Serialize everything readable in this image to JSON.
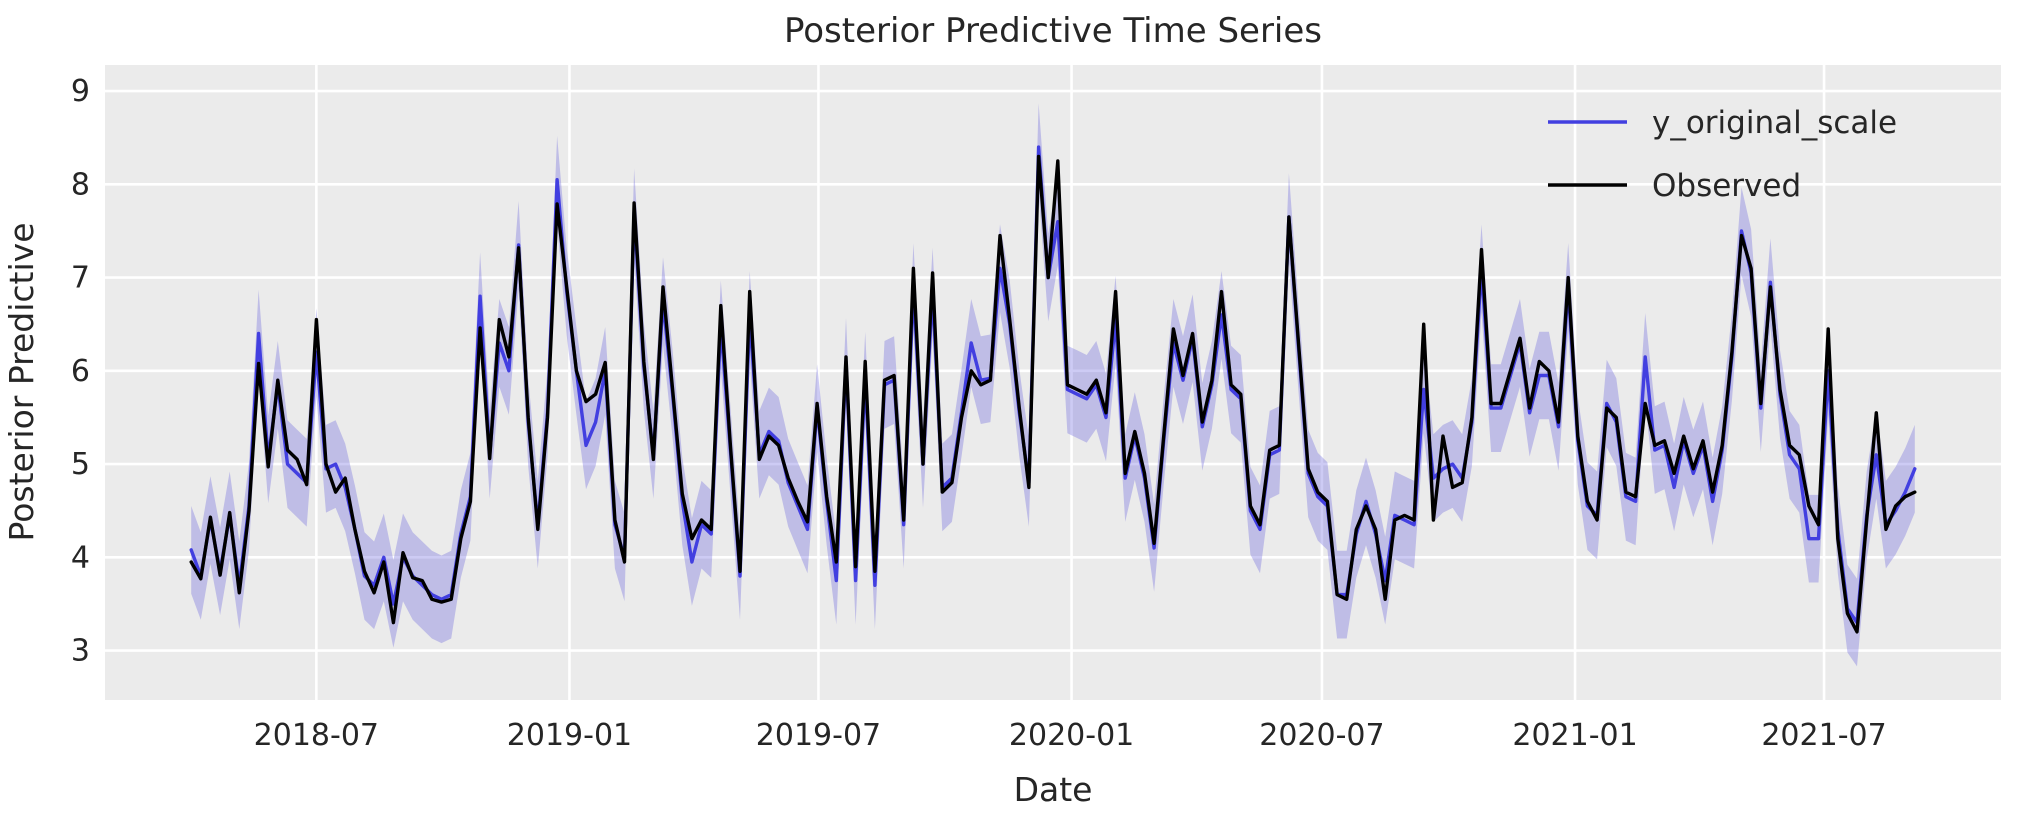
{
  "title": "Posterior Predictive Time Series",
  "axes": {
    "xlabel": "Date",
    "ylabel": "Posterior Predictive",
    "x_tick_labels": [
      "2018-07",
      "2019-01",
      "2019-07",
      "2020-01",
      "2020-07",
      "2021-01",
      "2021-07"
    ],
    "y_tick_labels": [
      "3",
      "4",
      "5",
      "6",
      "7",
      "8",
      "9"
    ]
  },
  "legend": {
    "items": [
      {
        "label": "y_original_scale",
        "color": "#423fe0"
      },
      {
        "label": "Observed",
        "color": "#000000"
      }
    ],
    "position": "upper right"
  },
  "colors": {
    "plot_background": "#ebebeb",
    "grid": "#ffffff",
    "text": "#262626",
    "predicted_line": "#423fe0",
    "observed_line": "#000000",
    "hdi_band": "#5853dc"
  },
  "chart_data": {
    "type": "line",
    "title": "Posterior Predictive Time Series",
    "xlabel": "Date",
    "ylabel": "Posterior Predictive",
    "x_start_date": "2018-04-01",
    "x_step_days": 7,
    "n_points": 180,
    "ylim": [
      2.45,
      9.3
    ],
    "y_ticks": [
      3,
      4,
      5,
      6,
      7,
      8,
      9
    ],
    "x_ticks_days_from_start": [
      91,
      275,
      456,
      640,
      822,
      1006,
      1187
    ],
    "x_tick_labels": [
      "2018-07",
      "2019-01",
      "2019-07",
      "2020-01",
      "2020-07",
      "2021-01",
      "2021-07"
    ],
    "grid": true,
    "legend_position": "upper right",
    "hdi_band": {
      "around": "y_original_scale",
      "halfwidth": 0.47,
      "opacity": 0.3
    },
    "series": [
      {
        "name": "y_original_scale",
        "color": "#423fe0",
        "values": [
          4.08,
          3.8,
          4.4,
          3.85,
          4.45,
          3.7,
          4.55,
          6.4,
          5.05,
          5.85,
          5.0,
          4.9,
          4.8,
          6.2,
          4.95,
          5.0,
          4.75,
          4.3,
          3.8,
          3.7,
          4.0,
          3.5,
          4.0,
          3.8,
          3.7,
          3.6,
          3.55,
          3.6,
          4.25,
          4.65,
          6.8,
          5.1,
          6.3,
          6.0,
          7.35,
          5.45,
          4.35,
          5.55,
          8.05,
          6.85,
          6.0,
          5.2,
          5.45,
          6.0,
          4.35,
          4.0,
          7.7,
          6.05,
          5.1,
          6.75,
          5.75,
          4.6,
          3.95,
          4.35,
          4.25,
          6.5,
          5.15,
          3.8,
          6.6,
          5.1,
          5.35,
          5.25,
          4.8,
          4.55,
          4.3,
          5.6,
          4.6,
          3.75,
          6.1,
          3.75,
          5.95,
          3.7,
          5.85,
          5.9,
          4.35,
          6.9,
          5.0,
          6.85,
          4.75,
          4.85,
          5.55,
          6.3,
          5.9,
          5.92,
          7.1,
          6.5,
          5.55,
          4.8,
          8.4,
          7.0,
          7.6,
          5.8,
          5.75,
          5.7,
          5.85,
          5.5,
          6.55,
          4.85,
          5.3,
          4.85,
          4.1,
          5.25,
          6.3,
          5.9,
          6.35,
          5.4,
          5.85,
          6.6,
          5.8,
          5.7,
          4.5,
          4.3,
          5.1,
          5.15,
          7.65,
          6.25,
          4.9,
          4.65,
          4.55,
          3.6,
          3.6,
          4.25,
          4.6,
          4.25,
          3.75,
          4.45,
          4.4,
          4.35,
          5.8,
          4.85,
          4.95,
          5.0,
          4.85,
          5.45,
          7.1,
          5.6,
          5.6,
          5.95,
          6.3,
          5.55,
          5.95,
          5.95,
          5.4,
          6.9,
          5.25,
          4.55,
          4.45,
          5.65,
          5.45,
          4.65,
          4.6,
          6.15,
          5.15,
          5.2,
          4.75,
          5.25,
          4.9,
          5.2,
          4.6,
          5.15,
          6.15,
          7.5,
          7.05,
          5.6,
          6.95,
          5.75,
          5.1,
          4.95,
          4.2,
          4.2,
          6.0,
          4.3,
          3.45,
          3.3,
          4.45,
          5.1,
          4.35,
          4.5,
          4.7,
          4.95
        ]
      },
      {
        "name": "Observed",
        "color": "#000000",
        "values": [
          3.95,
          3.77,
          4.43,
          3.81,
          4.48,
          3.62,
          4.5,
          6.08,
          4.97,
          5.9,
          5.15,
          5.05,
          4.78,
          6.55,
          5.0,
          4.7,
          4.85,
          4.3,
          3.85,
          3.62,
          3.95,
          3.3,
          4.05,
          3.78,
          3.75,
          3.55,
          3.52,
          3.55,
          4.2,
          4.6,
          6.46,
          5.06,
          6.55,
          6.15,
          7.32,
          5.5,
          4.3,
          5.5,
          7.79,
          6.9,
          6.0,
          5.67,
          5.75,
          6.09,
          4.4,
          3.95,
          7.8,
          6.1,
          5.05,
          6.9,
          5.8,
          4.68,
          4.2,
          4.4,
          4.3,
          6.7,
          5.2,
          3.85,
          6.85,
          5.05,
          5.3,
          5.2,
          4.85,
          4.6,
          4.38,
          5.65,
          4.65,
          3.95,
          6.15,
          3.9,
          6.1,
          3.85,
          5.9,
          5.95,
          4.4,
          7.1,
          5.0,
          7.05,
          4.7,
          4.8,
          5.5,
          6.0,
          5.85,
          5.9,
          7.45,
          6.55,
          5.6,
          4.75,
          8.3,
          7.0,
          8.25,
          5.85,
          5.8,
          5.75,
          5.9,
          5.55,
          6.85,
          4.9,
          5.35,
          4.9,
          4.15,
          5.3,
          6.45,
          5.95,
          6.4,
          5.45,
          5.9,
          6.85,
          5.85,
          5.75,
          4.55,
          4.35,
          5.15,
          5.2,
          7.65,
          6.3,
          4.95,
          4.7,
          4.6,
          3.6,
          3.55,
          4.3,
          4.55,
          4.3,
          3.55,
          4.4,
          4.45,
          4.4,
          6.5,
          4.4,
          5.3,
          4.75,
          4.8,
          5.5,
          7.3,
          5.65,
          5.65,
          6.0,
          6.35,
          5.6,
          6.1,
          6.0,
          5.45,
          7.0,
          5.3,
          4.6,
          4.4,
          5.6,
          5.5,
          4.7,
          4.65,
          5.65,
          5.2,
          5.25,
          4.9,
          5.3,
          4.95,
          5.25,
          4.7,
          5.2,
          6.2,
          7.45,
          7.1,
          5.65,
          6.9,
          5.8,
          5.2,
          5.1,
          4.55,
          4.35,
          6.45,
          4.2,
          3.4,
          3.2,
          4.4,
          5.55,
          4.3,
          4.55,
          4.65,
          4.7
        ]
      }
    ]
  }
}
